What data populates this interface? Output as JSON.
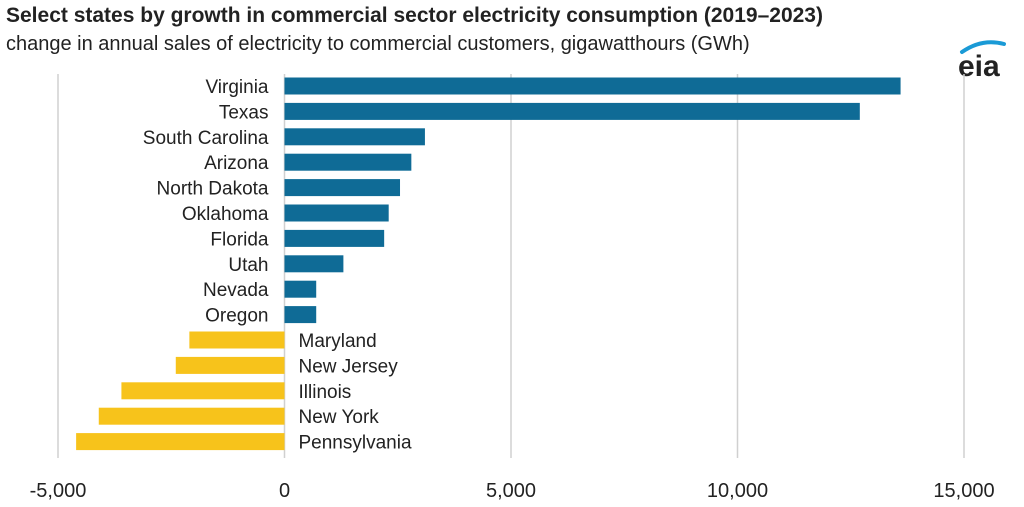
{
  "header": {
    "title": "Select states by growth in commercial sector electricity consumption (2019–2023)",
    "subtitle": "change in annual sales of electricity to commercial customers, gigawatthours (GWh)",
    "logo_text": "eia"
  },
  "colors": {
    "positive": "#0f6b96",
    "negative": "#f7c31b",
    "grid": "#d0d0d0",
    "logo_arc": "#1a9ad6"
  },
  "chart_data": {
    "type": "bar",
    "orientation": "horizontal",
    "categories": [
      "Virginia",
      "Texas",
      "South Carolina",
      "Arizona",
      "North Dakota",
      "Oklahoma",
      "Florida",
      "Utah",
      "Nevada",
      "Oregon",
      "Maryland",
      "New Jersey",
      "Illinois",
      "New York",
      "Pennsylvania"
    ],
    "values": [
      13600,
      12700,
      3100,
      2800,
      2550,
      2300,
      2200,
      1300,
      700,
      700,
      -2100,
      -2400,
      -3600,
      -4100,
      -4600
    ],
    "xlim": [
      -5000,
      15000
    ],
    "xticks": [
      -5000,
      0,
      5000,
      10000,
      15000
    ],
    "xtick_labels": [
      "-5,000",
      "0",
      "5,000",
      "10,000",
      "15,000"
    ],
    "title": "Select states by growth in commercial sector electricity consumption (2019–2023)",
    "subtitle": "change in annual sales of electricity to commercial customers, gigawatthours (GWh)",
    "grid": "vertical"
  }
}
